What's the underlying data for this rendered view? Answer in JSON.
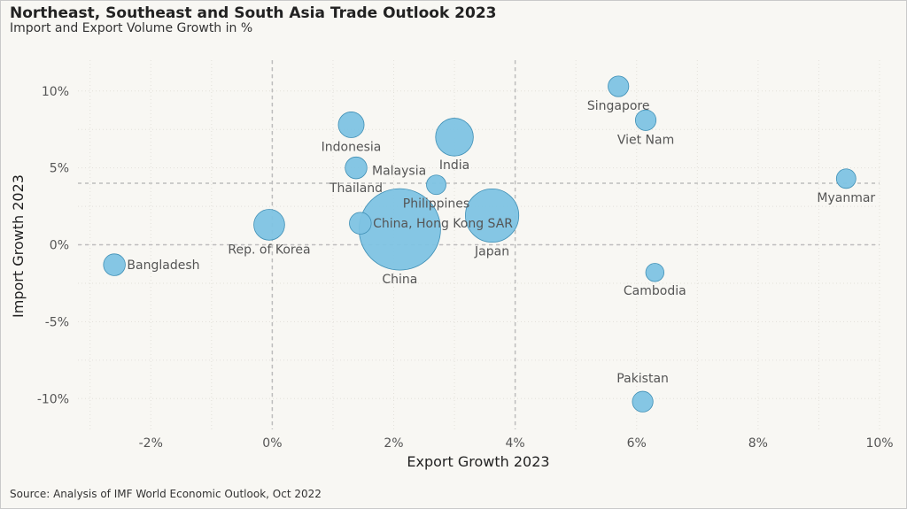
{
  "chart_data": {
    "type": "scatter",
    "title": "Northeast, Southeast and South Asia Trade Outlook 2023",
    "subtitle": "Import and Export Volume Growth in %",
    "xlabel": "Export Growth 2023",
    "ylabel": "Import Growth 2023",
    "xlim": [
      -3.2,
      10.0
    ],
    "ylim": [
      -12.0,
      12.0
    ],
    "x_ticks": [
      -2,
      0,
      2,
      4,
      6,
      8,
      10
    ],
    "y_ticks": [
      -10,
      -5,
      0,
      5,
      10
    ],
    "x_tick_labels": [
      "-2%",
      "0%",
      "2%",
      "4%",
      "6%",
      "8%",
      "10%"
    ],
    "y_tick_labels": [
      "-10%",
      "-5%",
      "0%",
      "5%",
      "10%"
    ],
    "reference_lines": {
      "x": [
        0,
        4
      ],
      "y": [
        0,
        4
      ]
    },
    "grid": "dotted",
    "bubble_color": "#7ec3e3",
    "bubble_stroke": "#3f8fb5",
    "points": [
      {
        "label": "Bangladesh",
        "x": -2.6,
        "y": -1.3,
        "size": 1.0,
        "label_pos": "right"
      },
      {
        "label": "Rep. of Korea",
        "x": -0.05,
        "y": 1.3,
        "size": 2.0,
        "label_pos": "below"
      },
      {
        "label": "China",
        "x": 2.1,
        "y": 1.0,
        "size": 14.0,
        "label_pos": "below"
      },
      {
        "label": "China, Hong Kong SAR",
        "x": 1.45,
        "y": 1.4,
        "size": 1.0,
        "label_pos": "right"
      },
      {
        "label": "Indonesia",
        "x": 1.3,
        "y": 7.8,
        "size": 1.4,
        "label_pos": "below"
      },
      {
        "label": "Thailand",
        "x": 1.38,
        "y": 5.0,
        "size": 1.0,
        "label_pos": "below"
      },
      {
        "label": "Malaysia",
        "x": 1.38,
        "y": 5.0,
        "size": 0.01,
        "label_pos": "right_only"
      },
      {
        "label": "Philippines",
        "x": 2.7,
        "y": 3.9,
        "size": 0.8,
        "label_pos": "below"
      },
      {
        "label": "India",
        "x": 3.0,
        "y": 7.0,
        "size": 3.0,
        "label_pos": "below"
      },
      {
        "label": "Japan",
        "x": 3.62,
        "y": 1.9,
        "size": 6.0,
        "label_pos": "below"
      },
      {
        "label": "Singapore",
        "x": 5.7,
        "y": 10.3,
        "size": 0.9,
        "label_pos": "below"
      },
      {
        "label": "Viet Nam",
        "x": 6.15,
        "y": 8.1,
        "size": 0.9,
        "label_pos": "below"
      },
      {
        "label": "Myanmar",
        "x": 9.45,
        "y": 4.3,
        "size": 0.8,
        "label_pos": "below"
      },
      {
        "label": "Cambodia",
        "x": 6.3,
        "y": -1.8,
        "size": 0.7,
        "label_pos": "below"
      },
      {
        "label": "Pakistan",
        "x": 6.1,
        "y": -10.2,
        "size": 0.9,
        "label_pos": "above"
      }
    ]
  },
  "footer": {
    "source": "Source: Analysis of IMF World Economic Outlook, Oct 2022"
  }
}
